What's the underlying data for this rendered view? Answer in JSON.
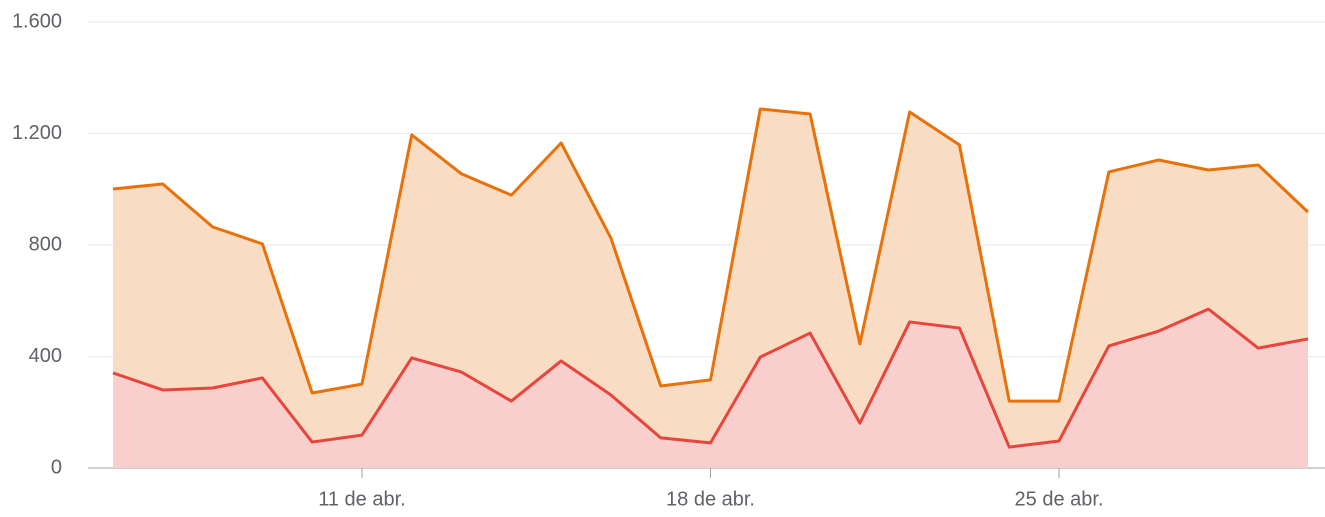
{
  "chart_data": {
    "type": "area",
    "categories": [
      null,
      null,
      null,
      null,
      null,
      "11 de abr.",
      null,
      null,
      null,
      null,
      null,
      null,
      "18 de abr.",
      null,
      null,
      null,
      null,
      null,
      null,
      "25 de abr.",
      null,
      null,
      null,
      null,
      null
    ],
    "series": [
      {
        "color": "#e8710a",
        "fill": "#f9dcc4",
        "values": [
          1001,
          1019,
          865,
          804,
          269,
          301,
          1195,
          1055,
          979,
          1166,
          825,
          294,
          316,
          1288,
          1270,
          445,
          1277,
          1159,
          240,
          240,
          1062,
          1105,
          1069,
          1087,
          918
        ]
      },
      {
        "color": "#e8453c",
        "fill": "#f9cfcd",
        "values": [
          341,
          280,
          287,
          323,
          93,
          118,
          395,
          344,
          240,
          384,
          262,
          108,
          90,
          398,
          484,
          161,
          524,
          502,
          75,
          97,
          438,
          491,
          570,
          430,
          463
        ]
      }
    ],
    "ylim": [
      0,
      1600
    ],
    "yticks": [
      0,
      400,
      800,
      {
        "value": 1200,
        "label": "1.200"
      },
      {
        "value": 1600,
        "label": "1.600"
      }
    ],
    "grid": true
  }
}
